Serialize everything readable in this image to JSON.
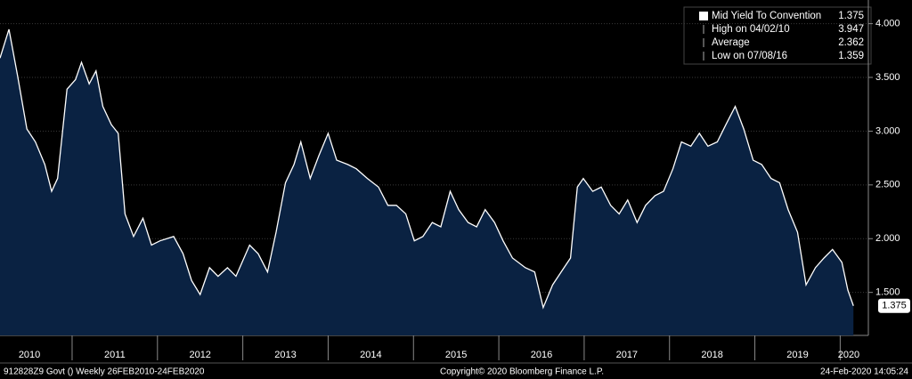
{
  "chart_data": {
    "type": "area",
    "series": [
      {
        "name": "Mid Yield To Convention",
        "color": "#ffffff",
        "fill": "#0a2242",
        "x": [
          2010.155,
          2010.26,
          2010.36,
          2010.47,
          2010.57,
          2010.68,
          2010.76,
          2010.83,
          2010.94,
          2011.04,
          2011.11,
          2011.2,
          2011.28,
          2011.36,
          2011.46,
          2011.54,
          2011.62,
          2011.72,
          2011.83,
          2011.93,
          2012.03,
          2012.19,
          2012.3,
          2012.4,
          2012.5,
          2012.61,
          2012.71,
          2012.82,
          2012.92,
          2013.08,
          2013.18,
          2013.29,
          2013.39,
          2013.5,
          2013.6,
          2013.68,
          2013.79,
          2013.89,
          2014.0,
          2014.1,
          2014.23,
          2014.33,
          2014.46,
          2014.59,
          2014.7,
          2014.8,
          2014.91,
          2015.01,
          2015.11,
          2015.22,
          2015.32,
          2015.43,
          2015.53,
          2015.64,
          2015.74,
          2015.84,
          2015.95,
          2016.05,
          2016.16,
          2016.31,
          2016.42,
          2016.52,
          2016.63,
          2016.73,
          2016.84,
          2016.92,
          2016.99,
          2017.1,
          2017.2,
          2017.31,
          2017.41,
          2017.51,
          2017.62,
          2017.72,
          2017.83,
          2017.93,
          2018.04,
          2018.14,
          2018.25,
          2018.35,
          2018.45,
          2018.56,
          2018.66,
          2018.77,
          2018.87,
          2018.98,
          2019.08,
          2019.19,
          2019.29,
          2019.39,
          2019.5,
          2019.6,
          2019.71,
          2019.81,
          2019.91,
          2020.02,
          2020.09,
          2020.155
        ],
        "values": [
          3.68,
          3.947,
          3.52,
          3.02,
          2.9,
          2.69,
          2.44,
          2.56,
          3.39,
          3.48,
          3.64,
          3.44,
          3.56,
          3.23,
          3.06,
          2.98,
          2.23,
          2.02,
          2.19,
          1.94,
          1.98,
          2.02,
          1.86,
          1.61,
          1.48,
          1.73,
          1.65,
          1.73,
          1.65,
          1.94,
          1.86,
          1.69,
          2.06,
          2.52,
          2.69,
          2.9,
          2.56,
          2.77,
          2.98,
          2.73,
          2.69,
          2.65,
          2.56,
          2.48,
          2.31,
          2.31,
          2.23,
          1.98,
          2.02,
          2.15,
          2.11,
          2.44,
          2.27,
          2.15,
          2.11,
          2.27,
          2.15,
          1.98,
          1.82,
          1.73,
          1.69,
          1.359,
          1.57,
          1.69,
          1.82,
          2.48,
          2.56,
          2.44,
          2.48,
          2.31,
          2.23,
          2.36,
          2.15,
          2.31,
          2.4,
          2.44,
          2.65,
          2.9,
          2.86,
          2.98,
          2.86,
          2.9,
          3.06,
          3.23,
          3.02,
          2.73,
          2.69,
          2.56,
          2.52,
          2.27,
          2.06,
          1.57,
          1.73,
          1.82,
          1.9,
          1.78,
          1.52,
          1.375
        ]
      }
    ],
    "legend": [
      {
        "label": "Mid Yield To Convention",
        "value": 1.375
      },
      {
        "label": "High on 04/02/10",
        "value": 3.947
      },
      {
        "label": "Average",
        "value": 2.362
      },
      {
        "label": "Low on 07/08/16",
        "value": 1.359
      }
    ],
    "last_value": 1.375,
    "xlim": [
      2010.155,
      2020.33
    ],
    "ylim": [
      1.1,
      4.22
    ],
    "yticks": [
      {
        "value": 1.5,
        "label": "1.500"
      },
      {
        "value": 2,
        "label": "2.000"
      },
      {
        "value": 2.5,
        "label": "2.500"
      },
      {
        "value": 3,
        "label": "3.000"
      },
      {
        "value": 3.5,
        "label": "3.500"
      },
      {
        "value": 4,
        "label": "4.000"
      }
    ],
    "xticks": [
      {
        "value": 2010.5,
        "label": "2010"
      },
      {
        "value": 2011.5,
        "label": "2011"
      },
      {
        "value": 2012.5,
        "label": "2012"
      },
      {
        "value": 2013.5,
        "label": "2013"
      },
      {
        "value": 2014.5,
        "label": "2014"
      },
      {
        "value": 2015.5,
        "label": "2015"
      },
      {
        "value": 2016.5,
        "label": "2016"
      },
      {
        "value": 2017.5,
        "label": "2017"
      },
      {
        "value": 2018.5,
        "label": "2018"
      },
      {
        "value": 2019.5,
        "label": "2019"
      },
      {
        "value": 2020.1,
        "label": "2020"
      }
    ],
    "year_boundaries": [
      2011,
      2012,
      2013,
      2014,
      2015,
      2016,
      2017,
      2018,
      2019,
      2020
    ],
    "footer": {
      "left": "912828Z9 Govt ()  Weekly 26FEB2010-24FEB2020",
      "center": "Copyright© 2020 Bloomberg Finance L.P.",
      "right": "24-Feb-2020 14:05:24"
    }
  }
}
